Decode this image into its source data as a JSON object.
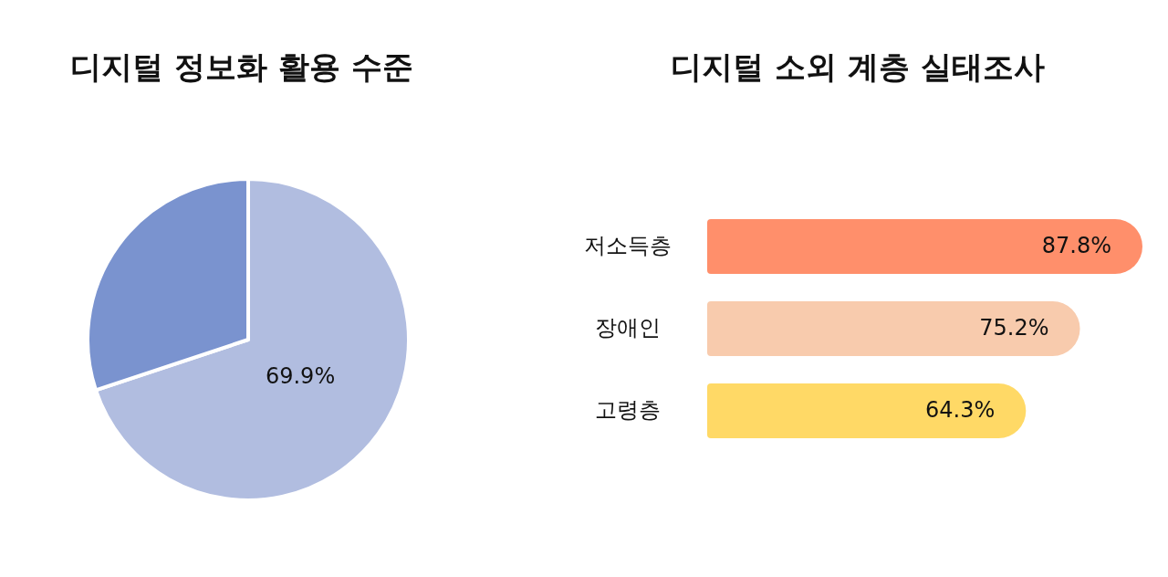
{
  "chart_data": [
    {
      "type": "pie",
      "title": "디지털 정보화 활용 수준",
      "categories": [
        null,
        null
      ],
      "values": [
        69.9,
        30.1
      ],
      "colors": [
        "#b1bde0",
        "#7a93cf"
      ],
      "value_labels": [
        "69.9%",
        null
      ]
    },
    {
      "type": "bar",
      "title": "디지털 소외 계층 실태조사",
      "orientation": "horizontal",
      "categories": [
        "저소득층",
        "장애인",
        "고령층"
      ],
      "values": [
        87.8,
        75.2,
        64.3
      ],
      "colors": [
        "#ff8f6b",
        "#f8cbad",
        "#ffd966"
      ],
      "value_labels": [
        "87.8%",
        "75.2%",
        "64.3%"
      ]
    }
  ]
}
